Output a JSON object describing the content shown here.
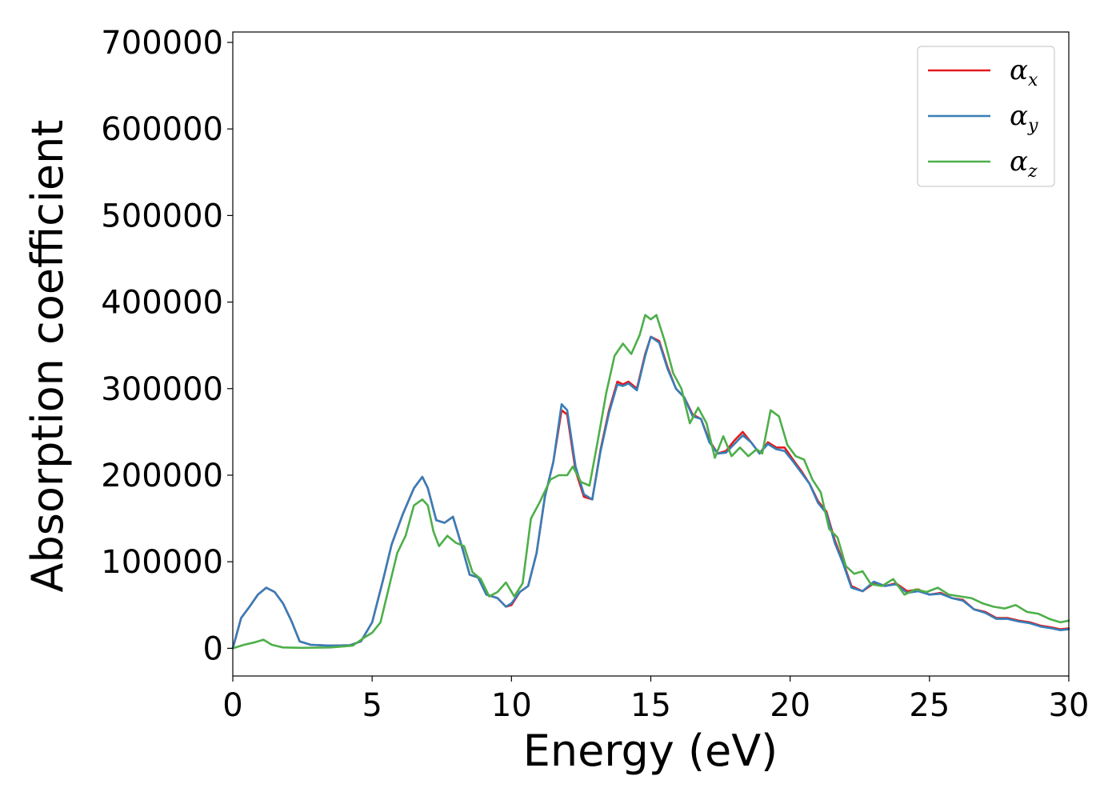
{
  "chart_data": {
    "type": "line",
    "title": "",
    "xlabel": "Energy (eV)",
    "ylabel": "Absorption coefficient",
    "xlim": [
      0,
      30
    ],
    "ylim": [
      -32000,
      712000
    ],
    "xticks": [
      0,
      5,
      10,
      15,
      20,
      25,
      30
    ],
    "xtick_labels": [
      "0",
      "5",
      "10",
      "15",
      "20",
      "25",
      "30"
    ],
    "yticks": [
      0,
      100000,
      200000,
      300000,
      400000,
      500000,
      600000,
      700000
    ],
    "ytick_labels": [
      "0",
      "100000",
      "200000",
      "300000",
      "400000",
      "500000",
      "600000",
      "700000"
    ],
    "grid": false,
    "legend_position": "top-right",
    "series": [
      {
        "name": "α",
        "subscript": "x",
        "color": "#e41a1c",
        "points": [
          [
            0,
            0
          ],
          [
            0.3,
            35000
          ],
          [
            0.6,
            48000
          ],
          [
            0.9,
            62000
          ],
          [
            1.2,
            70000
          ],
          [
            1.5,
            65000
          ],
          [
            1.8,
            52000
          ],
          [
            2.1,
            32000
          ],
          [
            2.4,
            8000
          ],
          [
            2.8,
            4000
          ],
          [
            3.5,
            3000
          ],
          [
            4.2,
            3500
          ],
          [
            4.6,
            8000
          ],
          [
            5.0,
            30000
          ],
          [
            5.4,
            80000
          ],
          [
            5.7,
            120000
          ],
          [
            6.1,
            155000
          ],
          [
            6.5,
            185000
          ],
          [
            6.8,
            198000
          ],
          [
            7.0,
            185000
          ],
          [
            7.3,
            148000
          ],
          [
            7.6,
            145000
          ],
          [
            7.9,
            152000
          ],
          [
            8.2,
            120000
          ],
          [
            8.5,
            85000
          ],
          [
            8.8,
            82000
          ],
          [
            9.1,
            62000
          ],
          [
            9.5,
            58000
          ],
          [
            9.8,
            48000
          ],
          [
            10.0,
            50000
          ],
          [
            10.3,
            65000
          ],
          [
            10.6,
            72000
          ],
          [
            10.9,
            110000
          ],
          [
            11.2,
            175000
          ],
          [
            11.5,
            215000
          ],
          [
            11.8,
            275000
          ],
          [
            12.0,
            270000
          ],
          [
            12.3,
            205000
          ],
          [
            12.6,
            175000
          ],
          [
            12.9,
            172000
          ],
          [
            13.2,
            230000
          ],
          [
            13.5,
            275000
          ],
          [
            13.8,
            308000
          ],
          [
            14.0,
            305000
          ],
          [
            14.2,
            308000
          ],
          [
            14.5,
            300000
          ],
          [
            14.8,
            340000
          ],
          [
            15.0,
            360000
          ],
          [
            15.3,
            355000
          ],
          [
            15.6,
            325000
          ],
          [
            15.9,
            300000
          ],
          [
            16.2,
            290000
          ],
          [
            16.5,
            270000
          ],
          [
            16.8,
            265000
          ],
          [
            17.1,
            240000
          ],
          [
            17.4,
            225000
          ],
          [
            17.7,
            228000
          ],
          [
            18.0,
            240000
          ],
          [
            18.3,
            250000
          ],
          [
            18.6,
            238000
          ],
          [
            18.9,
            225000
          ],
          [
            19.2,
            238000
          ],
          [
            19.5,
            232000
          ],
          [
            19.8,
            232000
          ],
          [
            20.1,
            218000
          ],
          [
            20.4,
            205000
          ],
          [
            20.7,
            190000
          ],
          [
            21.0,
            170000
          ],
          [
            21.3,
            158000
          ],
          [
            21.6,
            125000
          ],
          [
            21.9,
            100000
          ],
          [
            22.2,
            72000
          ],
          [
            22.6,
            66000
          ],
          [
            23.0,
            75000
          ],
          [
            23.4,
            72000
          ],
          [
            23.8,
            75000
          ],
          [
            24.2,
            66000
          ],
          [
            24.6,
            68000
          ],
          [
            25.0,
            62000
          ],
          [
            25.4,
            64000
          ],
          [
            25.8,
            58000
          ],
          [
            26.2,
            56000
          ],
          [
            26.6,
            45000
          ],
          [
            27.0,
            42000
          ],
          [
            27.4,
            35000
          ],
          [
            27.8,
            35000
          ],
          [
            28.2,
            32000
          ],
          [
            28.6,
            30000
          ],
          [
            29.0,
            26000
          ],
          [
            29.4,
            24000
          ],
          [
            29.7,
            22000
          ],
          [
            30.0,
            23000
          ]
        ]
      },
      {
        "name": "α",
        "subscript": "y",
        "color": "#377eb8",
        "points": [
          [
            0,
            0
          ],
          [
            0.3,
            35000
          ],
          [
            0.6,
            48000
          ],
          [
            0.9,
            62000
          ],
          [
            1.2,
            70000
          ],
          [
            1.5,
            65000
          ],
          [
            1.8,
            52000
          ],
          [
            2.1,
            32000
          ],
          [
            2.4,
            8000
          ],
          [
            2.8,
            4000
          ],
          [
            3.5,
            3000
          ],
          [
            4.2,
            3500
          ],
          [
            4.6,
            8000
          ],
          [
            5.0,
            30000
          ],
          [
            5.4,
            80000
          ],
          [
            5.7,
            120000
          ],
          [
            6.1,
            155000
          ],
          [
            6.5,
            185000
          ],
          [
            6.8,
            198000
          ],
          [
            7.0,
            185000
          ],
          [
            7.3,
            148000
          ],
          [
            7.6,
            145000
          ],
          [
            7.9,
            152000
          ],
          [
            8.2,
            120000
          ],
          [
            8.5,
            85000
          ],
          [
            8.8,
            82000
          ],
          [
            9.1,
            62000
          ],
          [
            9.5,
            58000
          ],
          [
            9.8,
            48000
          ],
          [
            10.0,
            52000
          ],
          [
            10.3,
            65000
          ],
          [
            10.6,
            72000
          ],
          [
            10.9,
            110000
          ],
          [
            11.2,
            175000
          ],
          [
            11.5,
            215000
          ],
          [
            11.8,
            282000
          ],
          [
            12.0,
            275000
          ],
          [
            12.3,
            210000
          ],
          [
            12.6,
            178000
          ],
          [
            12.9,
            172000
          ],
          [
            13.2,
            228000
          ],
          [
            13.5,
            272000
          ],
          [
            13.8,
            305000
          ],
          [
            14.0,
            303000
          ],
          [
            14.2,
            306000
          ],
          [
            14.5,
            298000
          ],
          [
            14.8,
            338000
          ],
          [
            15.0,
            360000
          ],
          [
            15.3,
            353000
          ],
          [
            15.6,
            323000
          ],
          [
            15.9,
            300000
          ],
          [
            16.2,
            290000
          ],
          [
            16.5,
            268000
          ],
          [
            16.8,
            265000
          ],
          [
            17.1,
            238000
          ],
          [
            17.4,
            225000
          ],
          [
            17.7,
            226000
          ],
          [
            18.0,
            236000
          ],
          [
            18.3,
            246000
          ],
          [
            18.6,
            238000
          ],
          [
            18.9,
            225000
          ],
          [
            19.2,
            236000
          ],
          [
            19.5,
            230000
          ],
          [
            19.8,
            228000
          ],
          [
            20.1,
            216000
          ],
          [
            20.4,
            203000
          ],
          [
            20.7,
            190000
          ],
          [
            21.0,
            168000
          ],
          [
            21.3,
            156000
          ],
          [
            21.6,
            122000
          ],
          [
            21.9,
            98000
          ],
          [
            22.2,
            70000
          ],
          [
            22.6,
            66000
          ],
          [
            23.0,
            77000
          ],
          [
            23.4,
            72000
          ],
          [
            23.8,
            74000
          ],
          [
            24.2,
            64000
          ],
          [
            24.6,
            66000
          ],
          [
            25.0,
            62000
          ],
          [
            25.4,
            63000
          ],
          [
            25.8,
            58000
          ],
          [
            26.2,
            55000
          ],
          [
            26.6,
            45000
          ],
          [
            27.0,
            41000
          ],
          [
            27.4,
            34000
          ],
          [
            27.8,
            34000
          ],
          [
            28.2,
            31000
          ],
          [
            28.6,
            29000
          ],
          [
            29.0,
            25000
          ],
          [
            29.4,
            23000
          ],
          [
            29.7,
            21000
          ],
          [
            30.0,
            22000
          ]
        ]
      },
      {
        "name": "α",
        "subscript": "z",
        "color": "#4daf4a",
        "points": [
          [
            0,
            0
          ],
          [
            0.4,
            4000
          ],
          [
            0.8,
            7000
          ],
          [
            1.1,
            10000
          ],
          [
            1.4,
            4000
          ],
          [
            1.8,
            1000
          ],
          [
            2.5,
            500
          ],
          [
            3.5,
            1000
          ],
          [
            4.3,
            3000
          ],
          [
            4.7,
            12000
          ],
          [
            5.0,
            18000
          ],
          [
            5.3,
            30000
          ],
          [
            5.6,
            70000
          ],
          [
            5.9,
            110000
          ],
          [
            6.2,
            130000
          ],
          [
            6.5,
            165000
          ],
          [
            6.8,
            172000
          ],
          [
            7.0,
            165000
          ],
          [
            7.2,
            135000
          ],
          [
            7.4,
            118000
          ],
          [
            7.7,
            130000
          ],
          [
            8.0,
            122000
          ],
          [
            8.3,
            118000
          ],
          [
            8.6,
            88000
          ],
          [
            8.9,
            80000
          ],
          [
            9.2,
            60000
          ],
          [
            9.5,
            65000
          ],
          [
            9.8,
            76000
          ],
          [
            10.1,
            60000
          ],
          [
            10.4,
            75000
          ],
          [
            10.7,
            150000
          ],
          [
            11.0,
            168000
          ],
          [
            11.4,
            195000
          ],
          [
            11.7,
            200000
          ],
          [
            12.0,
            200000
          ],
          [
            12.2,
            210000
          ],
          [
            12.5,
            192000
          ],
          [
            12.8,
            188000
          ],
          [
            13.1,
            240000
          ],
          [
            13.4,
            295000
          ],
          [
            13.7,
            338000
          ],
          [
            14.0,
            352000
          ],
          [
            14.3,
            340000
          ],
          [
            14.6,
            362000
          ],
          [
            14.8,
            385000
          ],
          [
            15.0,
            380000
          ],
          [
            15.2,
            385000
          ],
          [
            15.5,
            355000
          ],
          [
            15.8,
            318000
          ],
          [
            16.1,
            300000
          ],
          [
            16.4,
            260000
          ],
          [
            16.7,
            278000
          ],
          [
            17.0,
            260000
          ],
          [
            17.3,
            220000
          ],
          [
            17.6,
            245000
          ],
          [
            17.9,
            222000
          ],
          [
            18.2,
            232000
          ],
          [
            18.5,
            222000
          ],
          [
            18.8,
            230000
          ],
          [
            19.0,
            225000
          ],
          [
            19.3,
            275000
          ],
          [
            19.6,
            268000
          ],
          [
            19.9,
            235000
          ],
          [
            20.2,
            222000
          ],
          [
            20.5,
            218000
          ],
          [
            20.8,
            195000
          ],
          [
            21.1,
            180000
          ],
          [
            21.4,
            138000
          ],
          [
            21.7,
            128000
          ],
          [
            22.0,
            95000
          ],
          [
            22.3,
            86000
          ],
          [
            22.6,
            89000
          ],
          [
            22.9,
            74000
          ],
          [
            23.3,
            72000
          ],
          [
            23.7,
            80000
          ],
          [
            24.1,
            62000
          ],
          [
            24.5,
            68000
          ],
          [
            24.9,
            65000
          ],
          [
            25.3,
            70000
          ],
          [
            25.7,
            62000
          ],
          [
            26.1,
            60000
          ],
          [
            26.5,
            58000
          ],
          [
            26.9,
            52000
          ],
          [
            27.3,
            48000
          ],
          [
            27.7,
            46000
          ],
          [
            28.1,
            50000
          ],
          [
            28.5,
            42000
          ],
          [
            28.9,
            40000
          ],
          [
            29.3,
            34000
          ],
          [
            29.7,
            30000
          ],
          [
            30.0,
            32000
          ]
        ]
      }
    ]
  }
}
